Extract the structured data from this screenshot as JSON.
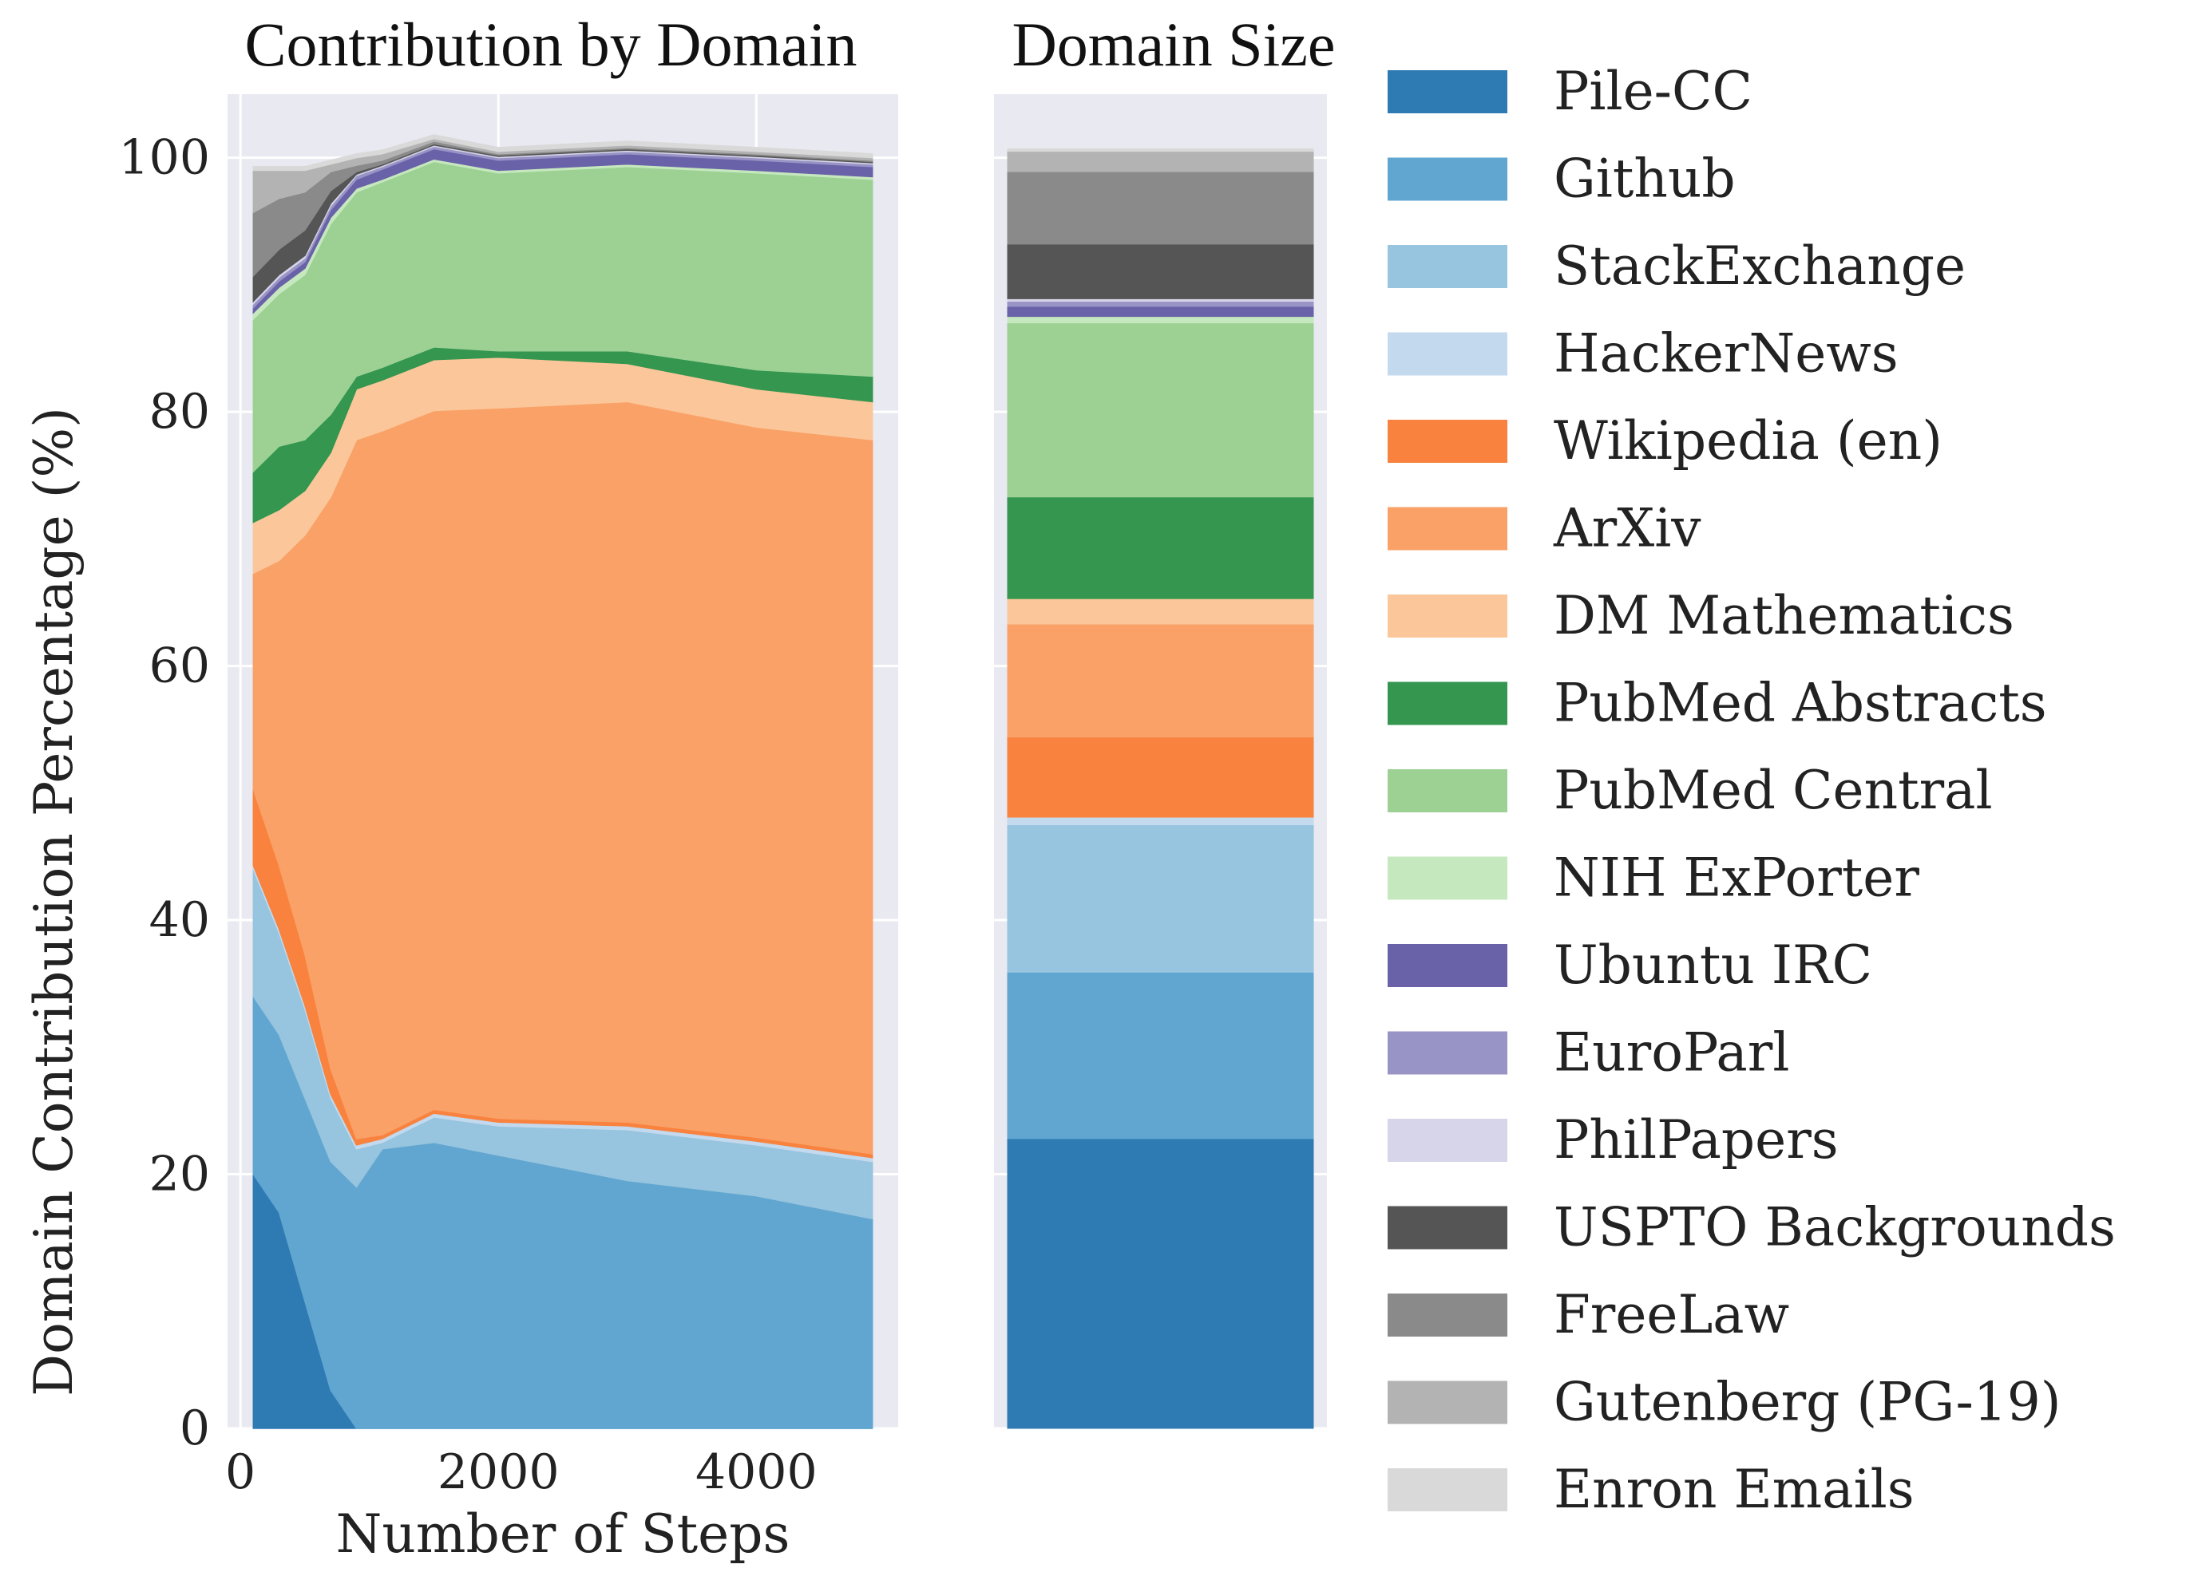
{
  "chart_data": [
    {
      "type": "area",
      "title": "Contribution by Domain",
      "xlabel": "Number of Steps",
      "ylabel": "Domain Contribution Percentage (%)",
      "xlim": [
        -100,
        5100
      ],
      "ylim": [
        0,
        105
      ],
      "xticks": [
        0,
        2000,
        4000
      ],
      "yticks": [
        0,
        20,
        40,
        60,
        80,
        100
      ],
      "grid": true,
      "stacked": true,
      "x": [
        100,
        300,
        500,
        700,
        900,
        1100,
        1500,
        2000,
        3000,
        4000,
        4900
      ],
      "series": [
        {
          "name": "Pile-CC",
          "values": [
            20,
            17,
            10,
            3,
            0,
            0,
            0,
            0,
            0,
            0,
            0
          ]
        },
        {
          "name": "Github",
          "values": [
            14,
            14,
            16,
            18,
            19,
            22,
            22.5,
            21.5,
            19.5,
            18.3,
            16.5
          ]
        },
        {
          "name": "StackExchange",
          "values": [
            10,
            8,
            7,
            5,
            3,
            0.5,
            2,
            2.3,
            4,
            4,
            4.5
          ]
        },
        {
          "name": "HackerNews",
          "values": [
            0.3,
            0.3,
            0.3,
            0.3,
            0.3,
            0.3,
            0.3,
            0.3,
            0.3,
            0.3,
            0.3
          ]
        },
        {
          "name": "Wikipedia (en)",
          "values": [
            6,
            5,
            4,
            2,
            0.5,
            0.3,
            0.3,
            0.3,
            0.3,
            0.3,
            0.3
          ]
        },
        {
          "name": "ArXiv",
          "values": [
            17,
            24,
            33,
            45,
            55,
            55.4,
            55,
            55.9,
            56.7,
            55.9,
            56.2
          ]
        },
        {
          "name": "DM Mathematics",
          "values": [
            4,
            4,
            3.5,
            3.5,
            4,
            4,
            4,
            4,
            3,
            3,
            3
          ]
        },
        {
          "name": "PubMed Abstracts",
          "values": [
            4,
            5,
            4,
            3,
            1,
            1,
            1,
            0.5,
            1,
            1.5,
            2
          ]
        },
        {
          "name": "PubMed Central",
          "values": [
            12,
            12,
            13,
            15,
            14.5,
            14.6,
            14.6,
            14,
            14.5,
            15.5,
            15.5
          ]
        },
        {
          "name": "NIH ExPorter",
          "values": [
            0.5,
            0.5,
            0.5,
            0.5,
            0.3,
            0.2,
            0.2,
            0.2,
            0.2,
            0.2,
            0.2
          ]
        },
        {
          "name": "Ubuntu IRC",
          "values": [
            0.4,
            0.5,
            0.5,
            0.6,
            0.7,
            0.8,
            0.8,
            0.8,
            0.8,
            0.8,
            0.8
          ]
        },
        {
          "name": "EuroParl",
          "values": [
            0.3,
            0.3,
            0.3,
            0.3,
            0.3,
            0.2,
            0.2,
            0.2,
            0.2,
            0.2,
            0.2
          ]
        },
        {
          "name": "PhilPapers",
          "values": [
            0.2,
            0.2,
            0.2,
            0.2,
            0.1,
            0.1,
            0.1,
            0.1,
            0.1,
            0.1,
            0.1
          ]
        },
        {
          "name": "USPTO Backgrounds",
          "values": [
            2,
            2,
            2,
            1,
            0.2,
            0.1,
            0.1,
            0.1,
            0.1,
            0.1,
            0.1
          ]
        },
        {
          "name": "FreeLaw",
          "values": [
            5,
            4,
            3,
            1.5,
            0.5,
            0.3,
            0.2,
            0.1,
            0.1,
            0.1,
            0.1
          ]
        },
        {
          "name": "Gutenberg (PG-19)",
          "values": [
            3.3,
            2.2,
            1.7,
            0.6,
            0.6,
            0.5,
            0.2,
            0.2,
            0.2,
            0.2,
            0.2
          ]
        },
        {
          "name": "Enron Emails",
          "values": [
            0.3,
            0.3,
            0.3,
            0.3,
            0.3,
            0.3,
            0.3,
            0.3,
            0.3,
            0.3,
            0.3
          ]
        }
      ]
    },
    {
      "type": "bar",
      "title": "Domain Size",
      "stacked": true,
      "ylim": [
        0,
        105
      ],
      "categories": [
        "Pile-CC",
        "Github",
        "StackExchange",
        "HackerNews",
        "Wikipedia (en)",
        "ArXiv",
        "DM Mathematics",
        "PubMed Abstracts",
        "PubMed Central",
        "NIH ExPorter",
        "Ubuntu IRC",
        "EuroParl",
        "PhilPapers",
        "USPTO Backgrounds",
        "FreeLaw",
        "Gutenberg (PG-19)",
        "Enron Emails"
      ],
      "values": [
        22.8,
        13.1,
        11.6,
        0.6,
        6.3,
        8.9,
        2,
        8,
        13.7,
        0.5,
        0.8,
        0.4,
        0.2,
        4.3,
        5.7,
        1.6,
        0.2
      ]
    }
  ],
  "legend": {
    "placement": "right",
    "items": [
      {
        "label": "Pile-CC",
        "color": "#2e7ab3"
      },
      {
        "label": "Github",
        "color": "#61a6d0"
      },
      {
        "label": "StackExchange",
        "color": "#97c4de"
      },
      {
        "label": "HackerNews",
        "color": "#c3d9ee"
      },
      {
        "label": "Wikipedia (en)",
        "color": "#f8823e"
      },
      {
        "label": "ArXiv",
        "color": "#faa168"
      },
      {
        "label": "DM Mathematics",
        "color": "#fbc79a"
      },
      {
        "label": "PubMed Abstracts",
        "color": "#34964f"
      },
      {
        "label": "PubMed Central",
        "color": "#9dd194"
      },
      {
        "label": "NIH ExPorter",
        "color": "#c6e8be"
      },
      {
        "label": "Ubuntu IRC",
        "color": "#6962a8"
      },
      {
        "label": "EuroParl",
        "color": "#9994c6"
      },
      {
        "label": "PhilPapers",
        "color": "#d6d5ea"
      },
      {
        "label": "USPTO Backgrounds",
        "color": "#555555"
      },
      {
        "label": "FreeLaw",
        "color": "#8a8a8a"
      },
      {
        "label": "Gutenberg (PG-19)",
        "color": "#b3b3b3"
      },
      {
        "label": "Enron Emails",
        "color": "#d9d9d9"
      }
    ]
  },
  "style": {
    "panel_background": "#e9e9f1",
    "grid_color": "#ffffff"
  }
}
